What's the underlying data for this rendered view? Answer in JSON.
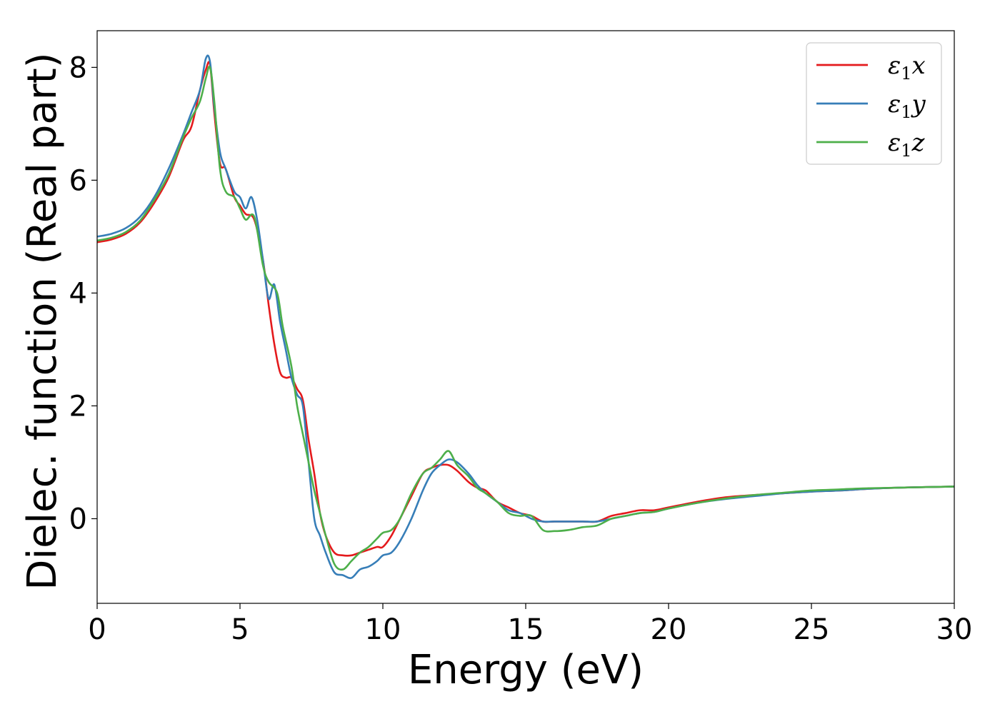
{
  "chart_data": {
    "type": "line",
    "xlabel": "Energy (eV)",
    "ylabel": "Dielec. function (Real part)",
    "xlim": [
      0,
      30
    ],
    "ylim": [
      -1.5,
      8.65
    ],
    "xticks": [
      0,
      5,
      10,
      15,
      20,
      25,
      30
    ],
    "yticks": [
      0,
      2,
      4,
      6,
      8
    ],
    "grid": false,
    "legend_position": "top-right",
    "series": [
      {
        "name": "ε1x",
        "name_base": "ε",
        "name_sub": "1",
        "name_var": "x",
        "color": "#e41a1c",
        "x": [
          0,
          0.5,
          1,
          1.5,
          2,
          2.5,
          3,
          3.3,
          3.6,
          3.8,
          3.95,
          4.1,
          4.3,
          4.5,
          4.8,
          5.0,
          5.2,
          5.5,
          5.8,
          6.0,
          6.2,
          6.4,
          6.6,
          6.8,
          7.0,
          7.2,
          7.4,
          7.6,
          7.8,
          8.0,
          8.3,
          8.6,
          8.9,
          9.2,
          9.5,
          9.8,
          10.0,
          10.3,
          10.6,
          11.0,
          11.4,
          11.7,
          12.0,
          12.3,
          12.6,
          13.0,
          13.3,
          13.6,
          14.0,
          14.4,
          14.8,
          15.2,
          15.6,
          16.0,
          16.5,
          17.0,
          17.5,
          18.0,
          18.5,
          19.0,
          19.5,
          20.0,
          21.0,
          22.0,
          23.0,
          24.0,
          25.0,
          26.0,
          27.0,
          28.0,
          29.0,
          30.0
        ],
        "y": [
          4.9,
          4.95,
          5.05,
          5.25,
          5.6,
          6.05,
          6.7,
          6.95,
          7.6,
          7.95,
          8.05,
          7.2,
          6.3,
          6.2,
          5.7,
          5.55,
          5.4,
          5.3,
          4.6,
          3.8,
          3.1,
          2.6,
          2.5,
          2.5,
          2.3,
          2.1,
          1.4,
          0.8,
          0.1,
          -0.3,
          -0.6,
          -0.65,
          -0.65,
          -0.6,
          -0.55,
          -0.5,
          -0.5,
          -0.3,
          0.0,
          0.4,
          0.8,
          0.9,
          0.95,
          0.95,
          0.85,
          0.65,
          0.55,
          0.5,
          0.3,
          0.2,
          0.1,
          0.05,
          -0.05,
          -0.05,
          -0.05,
          -0.05,
          -0.05,
          0.05,
          0.1,
          0.15,
          0.15,
          0.2,
          0.3,
          0.38,
          0.42,
          0.45,
          0.48,
          0.5,
          0.53,
          0.55,
          0.56,
          0.57
        ]
      },
      {
        "name": "ε1y",
        "name_base": "ε",
        "name_sub": "1",
        "name_var": "y",
        "color": "#377eb8",
        "x": [
          0,
          0.5,
          1,
          1.5,
          2,
          2.5,
          3,
          3.3,
          3.6,
          3.8,
          3.95,
          4.1,
          4.3,
          4.5,
          4.8,
          5.0,
          5.2,
          5.4,
          5.6,
          5.8,
          6.0,
          6.2,
          6.4,
          6.6,
          6.8,
          7.0,
          7.2,
          7.4,
          7.6,
          7.8,
          8.0,
          8.3,
          8.6,
          8.9,
          9.2,
          9.5,
          9.8,
          10.0,
          10.3,
          10.6,
          11.0,
          11.4,
          11.7,
          12.0,
          12.3,
          12.6,
          13.0,
          13.3,
          13.6,
          14.0,
          14.4,
          14.8,
          15.2,
          15.6,
          16.0,
          16.5,
          17.0,
          17.5,
          18.0,
          18.5,
          19.0,
          19.5,
          20.0,
          21.0,
          22.0,
          23.0,
          24.0,
          25.0,
          26.0,
          27.0,
          28.0,
          29.0,
          30.0
        ],
        "y": [
          5.0,
          5.05,
          5.15,
          5.35,
          5.7,
          6.2,
          6.8,
          7.2,
          7.6,
          8.15,
          8.1,
          7.3,
          6.5,
          6.2,
          5.8,
          5.7,
          5.5,
          5.7,
          5.3,
          4.6,
          3.9,
          4.15,
          3.5,
          3.0,
          2.5,
          2.2,
          2.0,
          1.0,
          0.0,
          -0.3,
          -0.6,
          -0.95,
          -1.0,
          -1.05,
          -0.9,
          -0.85,
          -0.75,
          -0.65,
          -0.6,
          -0.4,
          0.0,
          0.5,
          0.8,
          0.95,
          1.05,
          1.0,
          0.8,
          0.6,
          0.45,
          0.3,
          0.15,
          0.1,
          0.0,
          -0.05,
          -0.05,
          -0.05,
          -0.05,
          -0.05,
          0.0,
          0.05,
          0.1,
          0.12,
          0.18,
          0.28,
          0.35,
          0.4,
          0.45,
          0.48,
          0.5,
          0.53,
          0.55,
          0.56,
          0.57
        ]
      },
      {
        "name": "ε1z",
        "name_base": "ε",
        "name_sub": "1",
        "name_var": "z",
        "color": "#4daf4a",
        "x": [
          0,
          0.5,
          1,
          1.5,
          2,
          2.5,
          3,
          3.3,
          3.6,
          3.8,
          3.95,
          4.1,
          4.3,
          4.5,
          4.8,
          5.0,
          5.2,
          5.5,
          5.8,
          6.0,
          6.3,
          6.5,
          6.8,
          7.0,
          7.2,
          7.4,
          7.6,
          7.8,
          8.0,
          8.3,
          8.6,
          8.9,
          9.2,
          9.5,
          9.8,
          10.0,
          10.3,
          10.6,
          11.0,
          11.4,
          11.7,
          12.0,
          12.3,
          12.6,
          13.0,
          13.3,
          13.6,
          14.0,
          14.4,
          14.8,
          15.2,
          15.6,
          16.0,
          16.5,
          17.0,
          17.5,
          18.0,
          18.5,
          19.0,
          19.5,
          20.0,
          21.0,
          22.0,
          23.0,
          24.0,
          25.0,
          26.0,
          27.0,
          28.0,
          29.0,
          30.0
        ],
        "y": [
          4.93,
          4.98,
          5.08,
          5.28,
          5.65,
          6.1,
          6.75,
          7.1,
          7.4,
          7.8,
          8.0,
          7.4,
          6.2,
          5.8,
          5.7,
          5.5,
          5.3,
          5.35,
          4.5,
          4.2,
          4.0,
          3.4,
          2.7,
          2.0,
          1.5,
          1.0,
          0.5,
          0.1,
          -0.3,
          -0.8,
          -0.9,
          -0.75,
          -0.6,
          -0.5,
          -0.35,
          -0.25,
          -0.2,
          0.0,
          0.45,
          0.8,
          0.9,
          1.05,
          1.2,
          0.95,
          0.75,
          0.55,
          0.45,
          0.3,
          0.1,
          0.05,
          0.05,
          -0.2,
          -0.22,
          -0.2,
          -0.15,
          -0.12,
          0.0,
          0.05,
          0.1,
          0.12,
          0.18,
          0.28,
          0.36,
          0.42,
          0.46,
          0.5,
          0.52,
          0.54,
          0.55,
          0.56,
          0.57
        ]
      }
    ]
  }
}
